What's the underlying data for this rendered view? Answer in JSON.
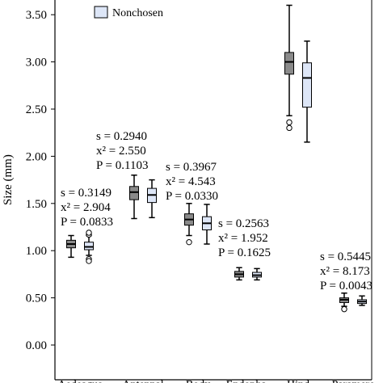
{
  "chart_data": {
    "type": "box",
    "ylabel": "Size (mm)",
    "ylim": [
      -0.25,
      3.75
    ],
    "yticks": [
      "0.00",
      "0.50",
      "1.00",
      "1.50",
      "2.00",
      "2.50",
      "3.00",
      "3.50"
    ],
    "categories": [
      "Aedeagus",
      "Antennal",
      "Body",
      "Endopha-",
      "Hind",
      "Paramere"
    ],
    "legend": {
      "placement": "top-left",
      "items": [
        {
          "name": "Nonchosen",
          "color": "#dde6f7"
        }
      ]
    },
    "series_colors": {
      "chosen": "#8a8a8a",
      "nonchosen": "#dde6f7"
    },
    "boxes": [
      {
        "category": "Aedeagus",
        "group": "chosen",
        "whisker_low": 0.93,
        "q1": 1.03,
        "median": 1.07,
        "q3": 1.11,
        "whisker_high": 1.16,
        "outliers": []
      },
      {
        "category": "Aedeagus",
        "group": "nonchosen",
        "whisker_low": 0.95,
        "q1": 1.01,
        "median": 1.04,
        "q3": 1.09,
        "whisker_high": 1.16,
        "outliers": [
          0.91,
          0.89,
          1.17,
          1.19
        ]
      },
      {
        "category": "Antennal",
        "group": "chosen",
        "whisker_low": 1.34,
        "q1": 1.54,
        "median": 1.62,
        "q3": 1.68,
        "whisker_high": 1.8,
        "outliers": []
      },
      {
        "category": "Antennal",
        "group": "nonchosen",
        "whisker_low": 1.35,
        "q1": 1.51,
        "median": 1.59,
        "q3": 1.66,
        "whisker_high": 1.75,
        "outliers": []
      },
      {
        "category": "Body",
        "group": "chosen",
        "whisker_low": 1.16,
        "q1": 1.27,
        "median": 1.33,
        "q3": 1.39,
        "whisker_high": 1.5,
        "outliers": [
          1.09
        ]
      },
      {
        "category": "Body",
        "group": "nonchosen",
        "whisker_low": 1.07,
        "q1": 1.22,
        "median": 1.29,
        "q3": 1.36,
        "whisker_high": 1.49,
        "outliers": []
      },
      {
        "category": "Endopha-",
        "group": "chosen",
        "whisker_low": 0.69,
        "q1": 0.72,
        "median": 0.75,
        "q3": 0.78,
        "whisker_high": 0.82,
        "outliers": []
      },
      {
        "category": "Endopha-",
        "group": "nonchosen",
        "whisker_low": 0.69,
        "q1": 0.72,
        "median": 0.74,
        "q3": 0.77,
        "whisker_high": 0.81,
        "outliers": []
      },
      {
        "category": "Hind",
        "group": "chosen",
        "whisker_low": 2.43,
        "q1": 2.87,
        "median": 3.0,
        "q3": 3.1,
        "whisker_high": 3.6,
        "outliers": [
          2.36,
          2.3
        ]
      },
      {
        "category": "Hind",
        "group": "nonchosen",
        "whisker_low": 2.15,
        "q1": 2.52,
        "median": 2.83,
        "q3": 2.99,
        "whisker_high": 3.22,
        "outliers": []
      },
      {
        "category": "Paramere",
        "group": "chosen",
        "whisker_low": 0.41,
        "q1": 0.45,
        "median": 0.48,
        "q3": 0.5,
        "whisker_high": 0.55,
        "outliers": [
          0.38
        ]
      },
      {
        "category": "Paramere",
        "group": "nonchosen",
        "whisker_low": 0.42,
        "q1": 0.44,
        "median": 0.46,
        "q3": 0.48,
        "whisker_high": 0.52,
        "outliers": []
      }
    ],
    "annotations": [
      {
        "category": "Aedeagus",
        "s": "s = 0.3149",
        "x2": "x² = 2.904",
        "p": "P = 0.0833"
      },
      {
        "category": "Antennal",
        "s": "s = 0.2940",
        "x2": "x² = 2.550",
        "p": "P = 0.1103"
      },
      {
        "category": "Body",
        "s": "s = 0.3967",
        "x2": "x² = 4.543",
        "p": "P = 0.0330"
      },
      {
        "category": "Endopha-",
        "s": "s = 0.2563",
        "x2": "x² = 1.952",
        "p": "P = 0.1625"
      },
      {
        "category": "Paramere",
        "s": "s = 0.5445",
        "x2": "x² = 8.173",
        "p": "P = 0.0043"
      }
    ]
  }
}
